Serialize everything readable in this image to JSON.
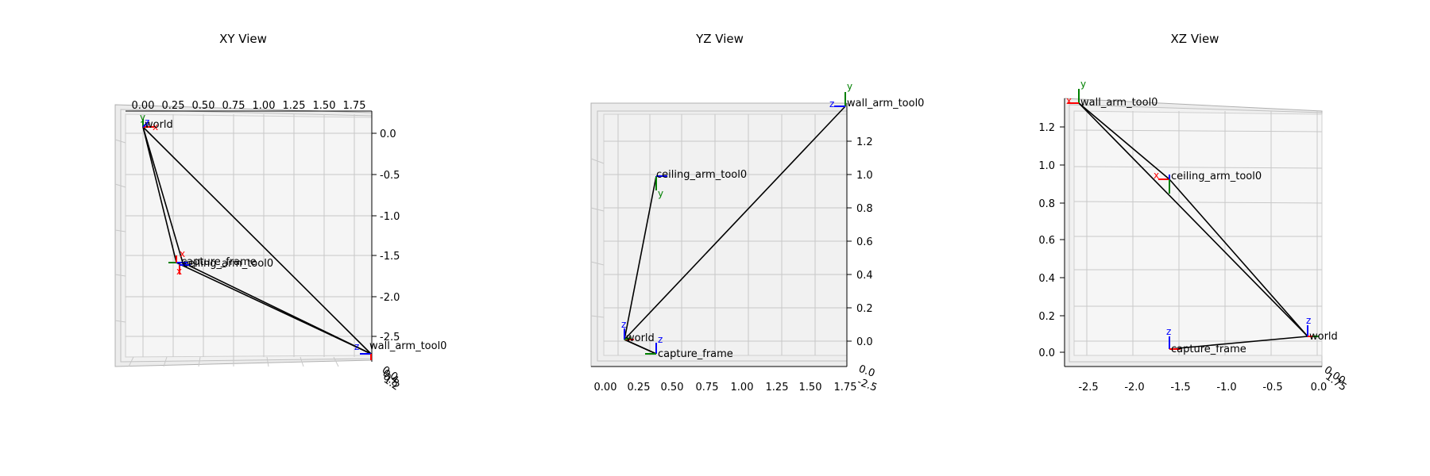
{
  "chart_data": [
    {
      "type": "scatter",
      "title": "XY View",
      "x_ticks": [
        "0.00",
        "0.25",
        "0.50",
        "0.75",
        "1.00",
        "1.25",
        "1.50",
        "1.75"
      ],
      "y_ticks": [
        "0.0",
        "-0.5",
        "-1.0",
        "-1.5",
        "-2.0",
        "-2.5"
      ],
      "z_ticks": [
        "0.0",
        "0.4",
        "0.8",
        "1.2"
      ],
      "frames": [
        {
          "name": "world",
          "x": 0.0,
          "y": 0.0
        },
        {
          "name": "capture_frame",
          "x": 0.27,
          "y": -1.55
        },
        {
          "name": "ceiling_arm_tool0",
          "x": 0.25,
          "y": -1.62
        },
        {
          "name": "wall_arm_tool0",
          "x": 1.85,
          "y": -2.65
        }
      ]
    },
    {
      "type": "scatter",
      "title": "YZ View",
      "x_ticks": [
        "0.00",
        "0.25",
        "0.50",
        "0.75",
        "1.00",
        "1.25",
        "1.50",
        "1.75"
      ],
      "y_ticks": [
        "0.0",
        "0.2",
        "0.4",
        "0.6",
        "0.8",
        "1.0",
        "1.2"
      ],
      "z_ticks": [
        "0.0",
        "-0.5",
        "-1.0",
        "-1.5",
        "-2.0",
        "-2.5"
      ],
      "frames": [
        {
          "name": "world",
          "x": 0.1,
          "y": 0.0
        },
        {
          "name": "capture_frame",
          "x": 0.35,
          "y": -0.05
        },
        {
          "name": "ceiling_arm_tool0",
          "x": 0.35,
          "y": 0.95
        },
        {
          "name": "wall_arm_tool0",
          "x": 1.8,
          "y": 1.3
        }
      ]
    },
    {
      "type": "scatter",
      "title": "XZ View",
      "x_ticks": [
        "-2.5",
        "-2.0",
        "-1.5",
        "-1.0",
        "-0.5",
        "0.0"
      ],
      "y_ticks": [
        "0.0",
        "0.2",
        "0.4",
        "0.6",
        "0.8",
        "1.0",
        "1.2"
      ],
      "z_ticks": [
        "0.00",
        "0.25",
        "0.50",
        "0.75",
        "1.00",
        "1.25",
        "1.50",
        "1.75"
      ],
      "frames": [
        {
          "name": "world",
          "x": 0.0,
          "y": 0.06
        },
        {
          "name": "capture_frame",
          "x": -1.55,
          "y": 0.0
        },
        {
          "name": "ceiling_arm_tool0",
          "x": -1.6,
          "y": 0.92
        },
        {
          "name": "wall_arm_tool0",
          "x": -2.65,
          "y": 1.32
        }
      ]
    }
  ],
  "axis_letters": {
    "x": "x",
    "y": "y",
    "z": "z"
  },
  "colors": {
    "x_axis": "#ff0000",
    "y_axis": "#008000",
    "z_axis": "#0000ff",
    "edge": "#000000",
    "pane": "#f2f2f2",
    "grid": "#b0b0b0"
  }
}
